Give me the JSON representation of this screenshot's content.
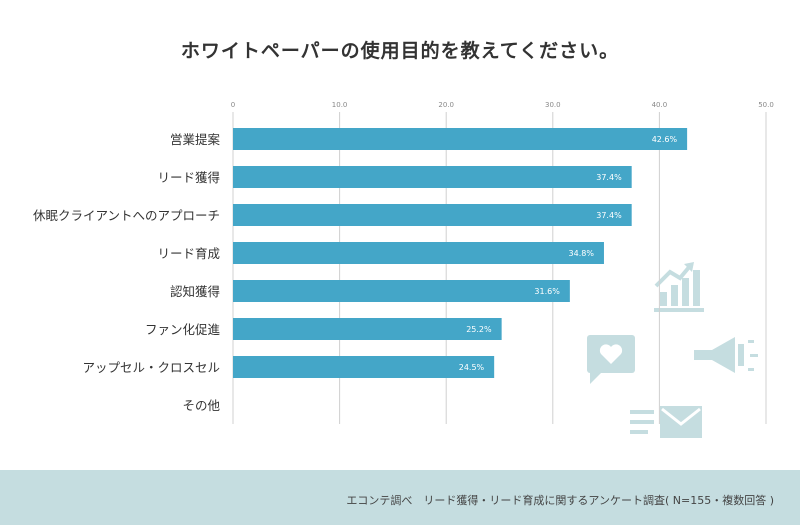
{
  "title": "ホワイトペーパーの使用目的を教えてください。",
  "chart_data": {
    "type": "bar",
    "orientation": "horizontal",
    "categories": [
      "営業提案",
      "リード獲得",
      "休眠クライアントへのアプローチ",
      "リード育成",
      "認知獲得",
      "ファン化促進",
      "アップセル・クロスセル",
      "その他"
    ],
    "values": [
      42.6,
      37.4,
      37.4,
      34.8,
      31.6,
      25.2,
      24.5,
      null
    ],
    "data_labels": [
      "42.6%",
      "37.4%",
      "37.4%",
      "34.8%",
      "31.6%",
      "25.2%",
      "24.5%",
      ""
    ],
    "xlim": [
      0,
      50
    ],
    "xticks": [
      "0",
      "10.0",
      "20.0",
      "30.0",
      "40.0",
      "50.0"
    ],
    "grid": true,
    "bar_color": "#44a6c8"
  },
  "footer": {
    "source": "エコンテ調べ　リード獲得・リード育成に関するアンケート調査( N=155・複数回答 )"
  },
  "decor_icons": [
    "chart-growth-icon",
    "heart-chat-icon",
    "megaphone-icon",
    "mail-icon"
  ],
  "decor_color": "#c5dde0"
}
